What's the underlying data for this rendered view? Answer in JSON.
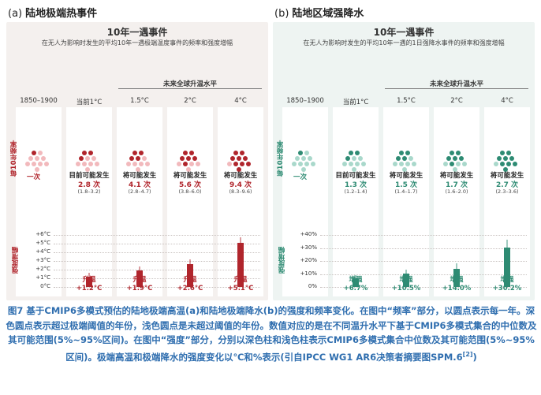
{
  "panels": [
    {
      "id": "a",
      "label": "(a)",
      "name": "陆地极端热事件",
      "title": "10年一遇事件",
      "subtitle": "在无人为影响时发生的平均10年一遇极端温度事件的频率和强度增幅",
      "future_label": "未来全球升温水平",
      "columns": [
        "1850–1900",
        "当前1°C",
        "1.5°C",
        "2°C",
        "4°C"
      ],
      "freq_axis": "每10年频率",
      "once_label": "一次",
      "intensity_axis": "强度增幅",
      "occurrence": [
        "目前可能发生",
        "将可能发生",
        "将可能发生",
        "将可能发生"
      ],
      "counts": [
        "2.8 次",
        "4.1 次",
        "5.6 次",
        "9.4 次"
      ],
      "ranges": [
        "(1.8–3.2)",
        "(2.8–4.7)",
        "(3.8–6.0)",
        "(8.3–9.6)"
      ],
      "ticks": [
        "+6°C",
        "+5°C",
        "+4°C",
        "+3°C",
        "+2°C",
        "+1°C",
        "0°C"
      ],
      "bar_word": "升温",
      "bar_labels": [
        "+1.2°C",
        "+1.9°C",
        "+2.6°C",
        "+5.1°C"
      ],
      "colors": {
        "dark": "#b0252c",
        "light": "#f2b9bc",
        "accent": "#b0252c"
      }
    },
    {
      "id": "b",
      "label": "(b)",
      "name": "陆地区域强降水",
      "title": "10年一遇事件",
      "subtitle": "在无人为影响时发生的平均10年一遇的1日强降水事件的频率和强度增幅",
      "future_label": "未来全球升温水平",
      "columns": [
        "1850–1900",
        "当前1°C",
        "1.5°C",
        "2°C",
        "4°C"
      ],
      "freq_axis": "每10年频率",
      "once_label": "一次",
      "intensity_axis": "强度增幅",
      "occurrence": [
        "目前可能发生",
        "将可能发生",
        "将可能发生",
        "将可能发生"
      ],
      "counts": [
        "1.3 次",
        "1.5 次",
        "1.7 次",
        "2.7 次"
      ],
      "ranges": [
        "(1.2–1.4)",
        "(1.4–1.7)",
        "(1.6–2.0)",
        "(2.3–3.6)"
      ],
      "ticks": [
        "+40%",
        "+30%",
        "+20%",
        "+10%",
        "0%"
      ],
      "bar_word": "增强",
      "bar_labels": [
        "+6.7%",
        "+10.5%",
        "+14.0%",
        "+30.2%"
      ],
      "colors": {
        "dark": "#2e8b73",
        "light": "#a9d8cb",
        "accent": "#2e8b73"
      }
    }
  ],
  "chart_data": [
    {
      "type": "bar",
      "title": "10年一遇事件",
      "categories": [
        "当前1°C",
        "1.5°C",
        "2°C",
        "4°C"
      ],
      "frequency": {
        "values": [
          1,
          2.8,
          4.1,
          5.6,
          9.4
        ],
        "categories": [
          "1850–1900",
          "当前1°C",
          "1.5°C",
          "2°C",
          "4°C"
        ],
        "low": [
          1,
          1.8,
          2.8,
          3.8,
          8.3
        ],
        "high": [
          1,
          3.2,
          4.7,
          6.0,
          9.6
        ]
      },
      "series": [
        {
          "values": [
            1.2,
            1.9,
            2.6,
            5.1
          ],
          "low": [
            0.8,
            1.4,
            2.0,
            4.4
          ],
          "high": [
            1.6,
            2.4,
            3.2,
            5.7
          ]
        }
      ],
      "ylabel": "强度增幅",
      "ylim": [
        0,
        6
      ],
      "unit": "°C"
    },
    {
      "type": "bar",
      "title": "10年一遇事件",
      "categories": [
        "当前1°C",
        "1.5°C",
        "2°C",
        "4°C"
      ],
      "frequency": {
        "values": [
          1,
          1.3,
          1.5,
          1.7,
          2.7
        ],
        "categories": [
          "1850–1900",
          "当前1°C",
          "1.5°C",
          "2°C",
          "4°C"
        ],
        "low": [
          1,
          1.2,
          1.4,
          1.6,
          2.3
        ],
        "high": [
          1,
          1.4,
          1.7,
          2.0,
          3.6
        ]
      },
      "series": [
        {
          "values": [
            6.7,
            10.5,
            14.0,
            30.2
          ],
          "low": [
            4.5,
            7.5,
            10.5,
            24.0
          ],
          "high": [
            9.0,
            13.5,
            18.0,
            36.5
          ]
        }
      ],
      "ylabel": "强度增幅",
      "ylim": [
        0,
        40
      ],
      "unit": "%"
    }
  ],
  "caption": {
    "text": "图7 基于CMIP6多模式预估的陆地极端高温(a)和陆地极端降水(b)的强度和频率变化。在图中“频率”部分，以圆点表示每一年。深色圆点表示超过极端阈值的年份，浅色圆点是未超过阈值的年份。数值对应的是在不同温升水平下基于CMIP6多模式集合的中位数及其可能范围(5%~95%区间)。在图中“强度”部分，分别以深色柱和浅色柱表示CMIP6多模式集合中位数及其可能范围(5%~95%区间)。极端高温和极端降水的强度变化以℃和%表示(引自IPCC WG1 AR6决策者摘要图SPM.6",
    "ref": "[2]",
    "end": ")"
  }
}
